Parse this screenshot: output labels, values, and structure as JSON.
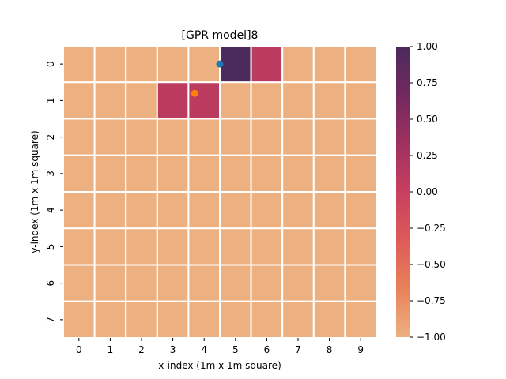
{
  "chart_data": {
    "type": "heatmap",
    "title": "[GPR model]8",
    "xlabel": "x-index (1m x 1m square)",
    "ylabel": "y-index (1m x 1m square)",
    "x_categories": [
      "0",
      "1",
      "2",
      "3",
      "4",
      "5",
      "6",
      "7",
      "8",
      "9"
    ],
    "y_categories": [
      "0",
      "1",
      "2",
      "3",
      "4",
      "5",
      "6",
      "7"
    ],
    "values": [
      [
        -1,
        -1,
        -1,
        -1,
        -1,
        1.0,
        0.1,
        -1,
        -1,
        -1
      ],
      [
        -1,
        -1,
        -1,
        0.1,
        0.1,
        -1,
        -1,
        -1,
        -1,
        -1
      ],
      [
        -1,
        -1,
        -1,
        -1,
        -1,
        -1,
        -1,
        -1,
        -1,
        -1
      ],
      [
        -1,
        -1,
        -1,
        -1,
        -1,
        -1,
        -1,
        -1,
        -1,
        -1
      ],
      [
        -1,
        -1,
        -1,
        -1,
        -1,
        -1,
        -1,
        -1,
        -1,
        -1
      ],
      [
        -1,
        -1,
        -1,
        -1,
        -1,
        -1,
        -1,
        -1,
        -1,
        -1
      ],
      [
        -1,
        -1,
        -1,
        -1,
        -1,
        -1,
        -1,
        -1,
        -1,
        -1
      ],
      [
        -1,
        -1,
        -1,
        -1,
        -1,
        -1,
        -1,
        -1,
        -1,
        -1
      ]
    ],
    "vmin": -1.0,
    "vmax": 1.0,
    "colorbar_ticks": [
      "1.00",
      "0.75",
      "0.50",
      "0.25",
      "0.00",
      "−0.25",
      "−0.50",
      "−0.75",
      "−1.00"
    ],
    "colormap": "flare",
    "colormap_stops": [
      "#edb081",
      "#e8825a",
      "#dd5b5a",
      "#c73f5f",
      "#9e3160",
      "#72295f",
      "#4b2a5c"
    ],
    "markers": [
      {
        "x": 5.0,
        "y": 0.5,
        "color": "#1f77b4"
      },
      {
        "x": 4.2,
        "y": 1.3,
        "color": "#ff7f0e"
      }
    ],
    "cell_border_color": "#ffffff"
  }
}
